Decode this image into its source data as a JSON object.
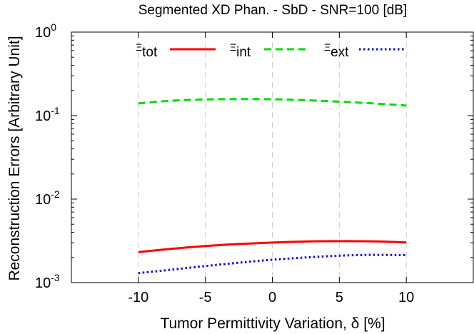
{
  "chart_data": {
    "type": "line",
    "title": "Segmented XD Phan. - SbD - SNR=100 [dB]",
    "xlabel": "Tumor Permittivity Variation, δ [%]",
    "ylabel": "Reconstruction Errors [Arbitrary Unit]",
    "xlim": [
      -15,
      15
    ],
    "ylim": [
      0.001,
      1
    ],
    "yscale": "log",
    "grid": "vertical dashed at x ticks",
    "legend": "top, horizontal",
    "x_ticks": [
      -10,
      -5,
      0,
      5,
      10
    ],
    "x_tick_labels": [
      "-10",
      "-5",
      "0",
      "5",
      "10"
    ],
    "y_ticks": [
      {
        "value": 1,
        "base": "10",
        "exp": "0"
      },
      {
        "value": 0.1,
        "base": "10",
        "exp": "-1"
      },
      {
        "value": 0.01,
        "base": "10",
        "exp": "-2"
      },
      {
        "value": 0.001,
        "base": "10",
        "exp": "-3"
      }
    ],
    "x": [
      -10,
      -7.5,
      -5,
      -2.5,
      0,
      2.5,
      5,
      7.5,
      10
    ],
    "series": [
      {
        "name": "Ξ",
        "subscript": "tot",
        "color": "#ff0000",
        "dash": "solid",
        "values": [
          0.00232,
          0.00254,
          0.00274,
          0.0029,
          0.00302,
          0.00311,
          0.00314,
          0.00312,
          0.00303
        ]
      },
      {
        "name": "Ξ",
        "subscript": "int",
        "color": "#00dd00",
        "dash": "dashed",
        "values": [
          0.14,
          0.151,
          0.156,
          0.158,
          0.157,
          0.153,
          0.147,
          0.14,
          0.132
        ]
      },
      {
        "name": "Ξ",
        "subscript": "ext",
        "color": "#0000ff",
        "dash": "dotted",
        "values": [
          0.0013,
          0.00143,
          0.00158,
          0.00173,
          0.00188,
          0.002,
          0.0021,
          0.00215,
          0.00213
        ]
      }
    ]
  }
}
